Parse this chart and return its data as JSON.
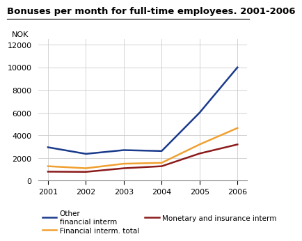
{
  "title": "Bonuses per month for full-time employees. 2001-2006",
  "ylabel": "NOK",
  "years": [
    2001,
    2002,
    2003,
    2004,
    2005,
    2006
  ],
  "series": [
    {
      "label": "Other\nfinancial interm",
      "color": "#1a3a8c",
      "values": [
        2950,
        2370,
        2700,
        2620,
        6000,
        10000
      ]
    },
    {
      "label": "Financial interm. total",
      "color": "#f0a030",
      "values": [
        1280,
        1100,
        1500,
        1580,
        3200,
        4650
      ]
    },
    {
      "label": "Monetary and insurance interm",
      "color": "#8b1a1a",
      "values": [
        800,
        780,
        1100,
        1280,
        2400,
        3200
      ]
    }
  ],
  "ylim": [
    0,
    12500
  ],
  "yticks": [
    0,
    2000,
    4000,
    6000,
    8000,
    10000,
    12000
  ],
  "grid_color": "#cccccc",
  "background_color": "#ffffff",
  "title_fontsize": 9.5,
  "tick_fontsize": 8,
  "legend_fontsize": 7.5,
  "linewidth": 1.8
}
